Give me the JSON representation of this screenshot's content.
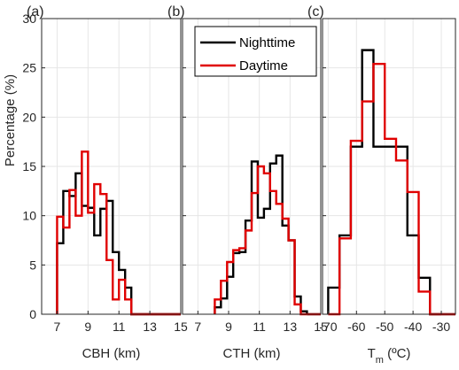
{
  "chart_data": {
    "type": "histogram",
    "ylabel": "Percentage (%)",
    "ylim": [
      0,
      30
    ],
    "yticks": [
      0,
      5,
      10,
      15,
      20,
      25,
      30
    ],
    "grid": true,
    "legend": {
      "location": "top",
      "entries": [
        "Nighttime",
        "Daytime"
      ]
    },
    "colors": {
      "Nighttime": "#000000",
      "Daytime": "#e00000"
    },
    "panels": [
      {
        "label": "(a)",
        "xlabel": "CBH (km)",
        "xlim": [
          6,
          15
        ],
        "xticks": [
          7,
          9,
          11,
          13,
          15
        ],
        "reversed": false,
        "series": [
          {
            "name": "Nighttime",
            "edges": [
              7.0,
              7.4,
              7.8,
              8.2,
              8.6,
              9.0,
              9.4,
              9.8,
              10.2,
              10.6,
              11.0,
              11.4,
              11.8,
              12.2
            ],
            "values": [
              7.2,
              12.5,
              12.0,
              14.3,
              11.0,
              10.8,
              8.0,
              10.7,
              11.5,
              6.3,
              4.5,
              2.7,
              0.0
            ]
          },
          {
            "name": "Daytime",
            "edges": [
              7.0,
              7.4,
              7.8,
              8.2,
              8.6,
              9.0,
              9.4,
              9.8,
              10.2,
              10.6,
              11.0,
              11.4,
              11.8,
              12.2
            ],
            "values": [
              9.9,
              8.8,
              12.6,
              10.0,
              16.5,
              10.3,
              13.2,
              12.2,
              5.5,
              1.5,
              3.5,
              1.5,
              0.0
            ]
          }
        ]
      },
      {
        "label": "(b)",
        "xlabel": "CTH (km)",
        "xlim": [
          6,
          15
        ],
        "xticks": [
          7,
          9,
          11,
          13,
          15
        ],
        "reversed": false,
        "series": [
          {
            "name": "Nighttime",
            "edges": [
              8.1,
              8.5,
              8.9,
              9.3,
              9.7,
              10.1,
              10.5,
              10.9,
              11.3,
              11.7,
              12.1,
              12.5,
              12.9,
              13.3,
              13.7,
              14.1
            ],
            "values": [
              0.7,
              1.6,
              3.8,
              6.2,
              6.3,
              9.5,
              15.5,
              9.8,
              10.7,
              15.3,
              16.1,
              9.0,
              7.5,
              1.8,
              0.3
            ]
          },
          {
            "name": "Daytime",
            "edges": [
              8.1,
              8.5,
              8.9,
              9.3,
              9.7,
              10.1,
              10.5,
              10.9,
              11.3,
              11.7,
              12.1,
              12.5,
              12.9,
              13.3,
              13.7,
              14.1
            ],
            "values": [
              1.5,
              3.4,
              5.3,
              6.5,
              6.7,
              8.5,
              12.3,
              15.0,
              14.3,
              12.5,
              11.2,
              9.7,
              7.5,
              1.0,
              0.0
            ]
          }
        ]
      },
      {
        "label": "(c)",
        "xlabel": "T",
        "xlabel_sub": "m",
        "xlabel_suffix": " (ºC)",
        "xlim": [
          -72,
          -25
        ],
        "xticks": [
          -70,
          -60,
          -50,
          -40,
          -30
        ],
        "reversed": false,
        "series": [
          {
            "name": "Nighttime",
            "edges": [
              -70,
              -66,
              -62,
              -58,
              -54,
              -50,
              -46,
              -42,
              -38,
              -34,
              -30
            ],
            "values": [
              2.7,
              8.0,
              17.0,
              26.8,
              17.0,
              17.0,
              17.0,
              8.0,
              3.7,
              0.0
            ]
          },
          {
            "name": "Daytime",
            "edges": [
              -70,
              -66,
              -62,
              -58,
              -54,
              -50,
              -46,
              -42,
              -38,
              -34,
              -30
            ],
            "values": [
              0.0,
              7.7,
              17.6,
              21.6,
              25.4,
              17.8,
              15.6,
              12.4,
              2.3,
              0.0
            ]
          }
        ]
      }
    ]
  }
}
